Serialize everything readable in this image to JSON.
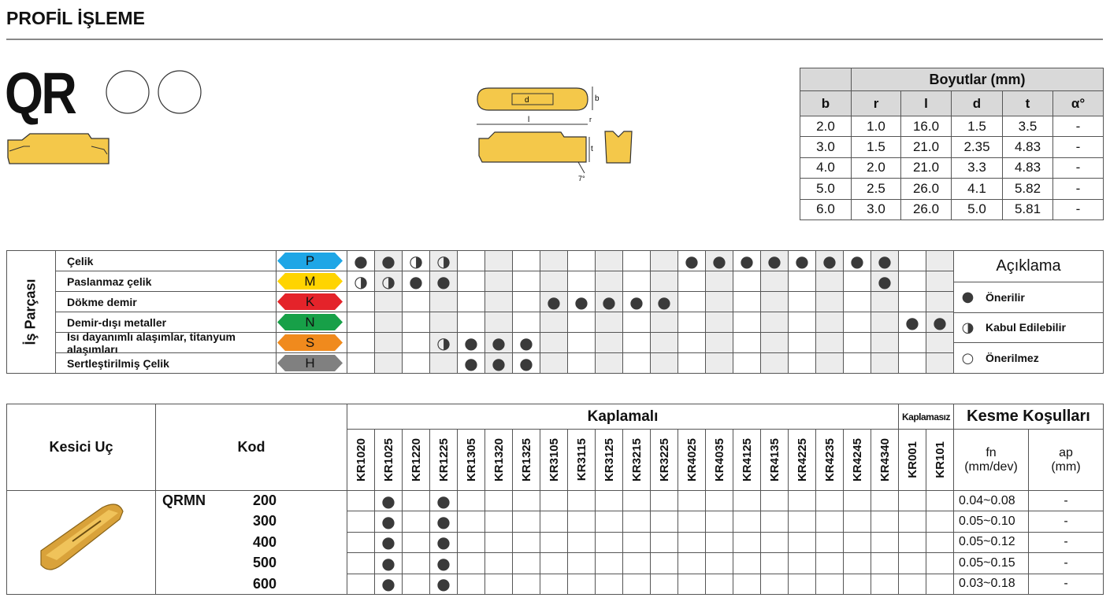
{
  "header": {
    "title": "PROFİL İŞLEME"
  },
  "product": {
    "code": "QR"
  },
  "diagram": {
    "labels": [
      "d",
      "l",
      "b",
      "r",
      "t",
      "7°"
    ]
  },
  "dimensions": {
    "title": "Boyutlar (mm)",
    "columns": [
      "b",
      "r",
      "l",
      "d",
      "t",
      "α°"
    ],
    "rows": [
      [
        "2.0",
        "1.0",
        "16.0",
        "1.5",
        "3.5",
        "-"
      ],
      [
        "3.0",
        "1.5",
        "21.0",
        "2.35",
        "4.83",
        "-"
      ],
      [
        "4.0",
        "2.0",
        "21.0",
        "3.3",
        "4.83",
        "-"
      ],
      [
        "5.0",
        "2.5",
        "26.0",
        "4.1",
        "5.82",
        "-"
      ],
      [
        "6.0",
        "3.0",
        "26.0",
        "5.0",
        "5.81",
        "-"
      ]
    ]
  },
  "workpiece": {
    "label": "İş Parçası",
    "materials": [
      {
        "name": "Çelik",
        "code": "P",
        "color": "#1ea6e6",
        "ratings": [
          "●",
          "●",
          "◑",
          "◑",
          null,
          null,
          null,
          null,
          null,
          null,
          null,
          null,
          "●",
          "●",
          "●",
          "●",
          "●",
          "●",
          "●",
          "●",
          null,
          null
        ]
      },
      {
        "name": "Paslanmaz çelik",
        "code": "M",
        "color": "#ffd400",
        "ratings": [
          "◑",
          "◑",
          "●",
          "●",
          null,
          null,
          null,
          null,
          null,
          null,
          null,
          null,
          null,
          null,
          null,
          null,
          null,
          null,
          null,
          "●",
          null,
          null
        ]
      },
      {
        "name": "Dökme demir",
        "code": "K",
        "color": "#e4232a",
        "ratings": [
          null,
          null,
          null,
          null,
          null,
          null,
          null,
          "●",
          "●",
          "●",
          "●",
          "●",
          null,
          null,
          null,
          null,
          null,
          null,
          null,
          null,
          null,
          null
        ]
      },
      {
        "name": "Demir-dışı metaller",
        "code": "N",
        "color": "#17a048",
        "ratings": [
          null,
          null,
          null,
          null,
          null,
          null,
          null,
          null,
          null,
          null,
          null,
          null,
          null,
          null,
          null,
          null,
          null,
          null,
          null,
          null,
          "●",
          "●"
        ]
      },
      {
        "name": "Isı dayanımlı alaşımlar, titanyum alaşımları",
        "code": "S",
        "color": "#f08a1d",
        "ratings": [
          null,
          null,
          null,
          "◑",
          "●",
          "●",
          "●",
          null,
          null,
          null,
          null,
          null,
          null,
          null,
          null,
          null,
          null,
          null,
          null,
          null,
          null,
          null
        ]
      },
      {
        "name": "Sertleştirilmiş Çelik",
        "code": "H",
        "color": "#808080",
        "ratings": [
          null,
          null,
          null,
          null,
          "●",
          "●",
          "●",
          null,
          null,
          null,
          null,
          null,
          null,
          null,
          null,
          null,
          null,
          null,
          null,
          null,
          null,
          null
        ]
      }
    ]
  },
  "legend": {
    "title": "Açıklama",
    "items": [
      {
        "symbol": "●",
        "label": "Önerilir"
      },
      {
        "symbol": "◑",
        "label": "Kabul Edilebilir"
      },
      {
        "symbol": "○",
        "label": "Önerilmez"
      }
    ]
  },
  "inserts": {
    "header": {
      "insert": "Kesici Uç",
      "code": "Kod",
      "coated": "Kaplamalı",
      "uncoated": "Kaplamasız",
      "conditions": "Kesme Koşulları",
      "fn": "fn",
      "fn_unit": "(mm/dev)",
      "ap": "ap",
      "ap_unit": "(mm)"
    },
    "coated_grades": [
      "KR1020",
      "KR1025",
      "KR1220",
      "KR1225",
      "KR1305",
      "KR1320",
      "KR1325",
      "KR3105",
      "KR3115",
      "KR3125",
      "KR3215",
      "KR3225",
      "KR4025",
      "KR4035",
      "KR4125",
      "KR4135",
      "KR4225",
      "KR4235",
      "KR4245",
      "KR4340"
    ],
    "uncoated_grades": [
      "KR001",
      "KR101"
    ],
    "series": "QRMN",
    "rows": [
      {
        "size": "200",
        "ratings": [
          null,
          "●",
          null,
          "●",
          null,
          null,
          null,
          null,
          null,
          null,
          null,
          null,
          null,
          null,
          null,
          null,
          null,
          null,
          null,
          null,
          null,
          null
        ],
        "fn": "0.04~0.08",
        "ap": "-"
      },
      {
        "size": "300",
        "ratings": [
          null,
          "●",
          null,
          "●",
          null,
          null,
          null,
          null,
          null,
          null,
          null,
          null,
          null,
          null,
          null,
          null,
          null,
          null,
          null,
          null,
          null,
          null
        ],
        "fn": "0.05~0.10",
        "ap": "-"
      },
      {
        "size": "400",
        "ratings": [
          null,
          "●",
          null,
          "●",
          null,
          null,
          null,
          null,
          null,
          null,
          null,
          null,
          null,
          null,
          null,
          null,
          null,
          null,
          null,
          null,
          null,
          null
        ],
        "fn": "0.05~0.12",
        "ap": "-"
      },
      {
        "size": "500",
        "ratings": [
          null,
          "●",
          null,
          "●",
          null,
          null,
          null,
          null,
          null,
          null,
          null,
          null,
          null,
          null,
          null,
          null,
          null,
          null,
          null,
          null,
          null,
          null
        ],
        "fn": "0.05~0.15",
        "ap": "-"
      },
      {
        "size": "600",
        "ratings": [
          null,
          "●",
          null,
          "●",
          null,
          null,
          null,
          null,
          null,
          null,
          null,
          null,
          null,
          null,
          null,
          null,
          null,
          null,
          null,
          null,
          null,
          null
        ],
        "fn": "0.03~0.18",
        "ap": "-"
      }
    ]
  }
}
